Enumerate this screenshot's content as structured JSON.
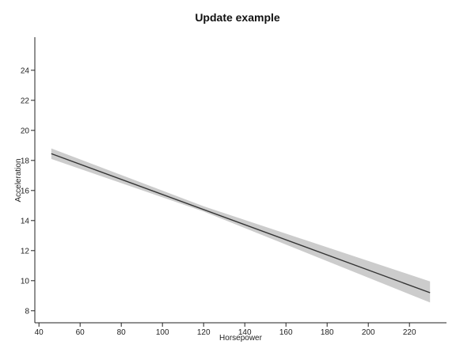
{
  "chart_data": {
    "type": "line",
    "title": "Update example",
    "xlabel": "Horsepower",
    "ylabel": "Acceleration",
    "xlim": [
      38,
      238
    ],
    "ylim": [
      7.2,
      26.2
    ],
    "xticks": [
      40,
      60,
      80,
      100,
      120,
      140,
      160,
      180,
      200,
      220
    ],
    "yticks": [
      8,
      10,
      12,
      14,
      16,
      18,
      20,
      22,
      24
    ],
    "grid": false,
    "series": [
      {
        "type": "regression-line",
        "x": [
          46,
          230
        ],
        "y": [
          18.45,
          9.2
        ],
        "ci_upper": [
          18.8,
          9.95
        ],
        "ci_lower": [
          18.1,
          8.55
        ],
        "ci_mid_x": 120,
        "ci_mid_upper": 14.95,
        "ci_mid_lower": 14.6
      }
    ],
    "colors": {
      "line": "#333333",
      "band": "#cccccc",
      "axis": "#222222"
    }
  }
}
